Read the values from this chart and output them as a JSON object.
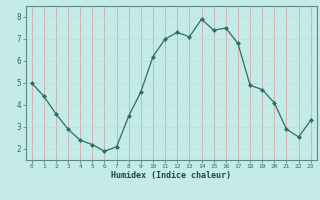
{
  "x": [
    0,
    1,
    2,
    3,
    4,
    5,
    6,
    7,
    8,
    9,
    10,
    11,
    12,
    13,
    14,
    15,
    16,
    17,
    18,
    19,
    20,
    21,
    22,
    23
  ],
  "y": [
    5.0,
    4.4,
    3.6,
    2.9,
    2.4,
    2.2,
    1.9,
    2.1,
    3.5,
    4.6,
    6.2,
    7.0,
    7.3,
    7.1,
    7.9,
    7.4,
    7.5,
    6.8,
    4.9,
    4.7,
    4.1,
    2.9,
    2.55,
    3.3
  ],
  "xlabel": "Humidex (Indice chaleur)",
  "ylim": [
    1.5,
    8.5
  ],
  "xlim": [
    -0.5,
    23.5
  ],
  "bg_color": "#c5ebe8",
  "grid_color_v": "#d4a0a0",
  "grid_color_h": "#c8d8d4",
  "line_color": "#2d6e65",
  "marker_color": "#2d6e65",
  "spine_color": "#5a8a80",
  "yticks": [
    2,
    3,
    4,
    5,
    6,
    7,
    8
  ],
  "xticks": [
    0,
    1,
    2,
    3,
    4,
    5,
    6,
    7,
    8,
    9,
    10,
    11,
    12,
    13,
    14,
    15,
    16,
    17,
    18,
    19,
    20,
    21,
    22,
    23
  ],
  "tick_label_color": "#2d6e65",
  "xlabel_color": "#1a4a40"
}
